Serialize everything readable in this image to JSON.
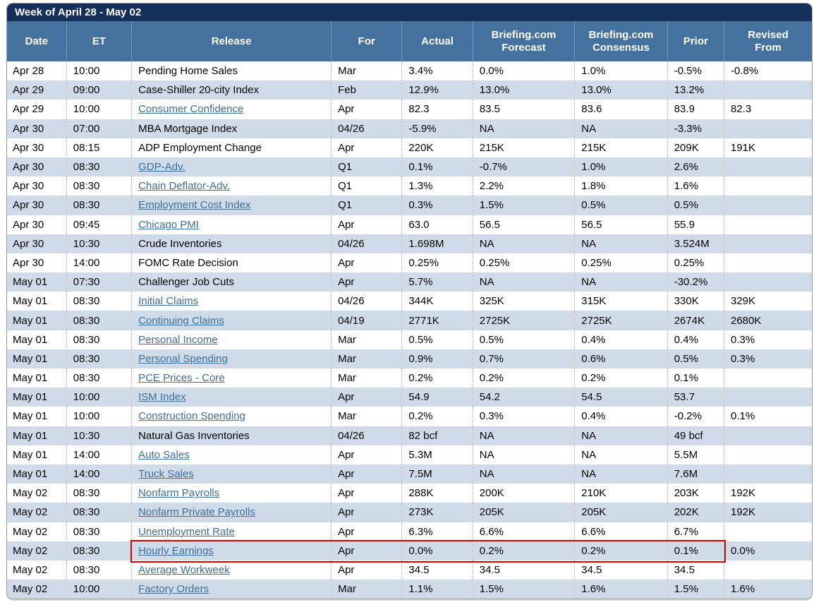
{
  "title": "Week of April 28 - May 02",
  "colors": {
    "title_bar": "#14305a",
    "column_header": "#44719e",
    "row_alt": "#cfdbe8",
    "link": "#3d6f99",
    "highlight_border": "#d40000"
  },
  "columns": [
    "Date",
    "ET",
    "Release",
    "For",
    "Actual",
    "Briefing.com\nForecast",
    "Briefing.com\nConsensus",
    "Prior",
    "Revised\nFrom"
  ],
  "rows": [
    {
      "date": "Apr 28",
      "et": "10:00",
      "release": "Pending Home Sales",
      "link": false,
      "for": "Mar",
      "actual": "3.4%",
      "forecast": "0.0%",
      "consensus": "1.0%",
      "prior": "-0.5%",
      "revised": "-0.8%"
    },
    {
      "date": "Apr 29",
      "et": "09:00",
      "release": "Case-Shiller 20-city Index",
      "link": false,
      "for": "Feb",
      "actual": "12.9%",
      "forecast": "13.0%",
      "consensus": "13.0%",
      "prior": "13.2%",
      "revised": ""
    },
    {
      "date": "Apr 29",
      "et": "10:00",
      "release": "Consumer Confidence",
      "link": true,
      "for": "Apr",
      "actual": "82.3",
      "forecast": "83.5",
      "consensus": "83.6",
      "prior": "83.9",
      "revised": "82.3"
    },
    {
      "date": "Apr 30",
      "et": "07:00",
      "release": "MBA Mortgage Index",
      "link": false,
      "for": "04/26",
      "actual": "-5.9%",
      "forecast": "NA",
      "consensus": "NA",
      "prior": "-3.3%",
      "revised": ""
    },
    {
      "date": "Apr 30",
      "et": "08:15",
      "release": "ADP Employment Change",
      "link": false,
      "for": "Apr",
      "actual": "220K",
      "forecast": "215K",
      "consensus": "215K",
      "prior": "209K",
      "revised": "191K"
    },
    {
      "date": "Apr 30",
      "et": "08:30",
      "release": "GDP-Adv.",
      "link": true,
      "for": "Q1",
      "actual": "0.1%",
      "forecast": "-0.7%",
      "consensus": "1.0%",
      "prior": "2.6%",
      "revised": ""
    },
    {
      "date": "Apr 30",
      "et": "08:30",
      "release": "Chain Deflator-Adv.",
      "link": true,
      "for": "Q1",
      "actual": "1.3%",
      "forecast": "2.2%",
      "consensus": "1.8%",
      "prior": "1.6%",
      "revised": ""
    },
    {
      "date": "Apr 30",
      "et": "08:30",
      "release": "Employment Cost Index",
      "link": true,
      "for": "Q1",
      "actual": "0.3%",
      "forecast": "1.5%",
      "consensus": "0.5%",
      "prior": "0.5%",
      "revised": ""
    },
    {
      "date": "Apr 30",
      "et": "09:45",
      "release": "Chicago PMI",
      "link": true,
      "for": "Apr",
      "actual": "63.0",
      "forecast": "56.5",
      "consensus": "56.5",
      "prior": "55.9",
      "revised": ""
    },
    {
      "date": "Apr 30",
      "et": "10:30",
      "release": "Crude Inventories",
      "link": false,
      "for": "04/26",
      "actual": "1.698M",
      "forecast": "NA",
      "consensus": "NA",
      "prior": "3.524M",
      "revised": ""
    },
    {
      "date": "Apr 30",
      "et": "14:00",
      "release": "FOMC Rate Decision",
      "link": false,
      "for": "Apr",
      "actual": "0.25%",
      "forecast": "0.25%",
      "consensus": "0.25%",
      "prior": "0.25%",
      "revised": ""
    },
    {
      "date": "May 01",
      "et": "07:30",
      "release": "Challenger Job Cuts",
      "link": false,
      "for": "Apr",
      "actual": "5.7%",
      "forecast": "NA",
      "consensus": "NA",
      "prior": "-30.2%",
      "revised": ""
    },
    {
      "date": "May 01",
      "et": "08:30",
      "release": "Initial Claims",
      "link": true,
      "for": "04/26",
      "actual": "344K",
      "forecast": "325K",
      "consensus": "315K",
      "prior": "330K",
      "revised": "329K"
    },
    {
      "date": "May 01",
      "et": "08:30",
      "release": "Continuing Claims",
      "link": true,
      "for": "04/19",
      "actual": "2771K",
      "forecast": "2725K",
      "consensus": "2725K",
      "prior": "2674K",
      "revised": "2680K"
    },
    {
      "date": "May 01",
      "et": "08:30",
      "release": "Personal Income",
      "link": true,
      "for": "Mar",
      "actual": "0.5%",
      "forecast": "0.5%",
      "consensus": "0.4%",
      "prior": "0.4%",
      "revised": "0.3%"
    },
    {
      "date": "May 01",
      "et": "08:30",
      "release": "Personal Spending",
      "link": true,
      "for": "Mar",
      "actual": "0.9%",
      "forecast": "0.7%",
      "consensus": "0.6%",
      "prior": "0.5%",
      "revised": "0.3%"
    },
    {
      "date": "May 01",
      "et": "08:30",
      "release": "PCE Prices - Core",
      "link": true,
      "for": "Mar",
      "actual": "0.2%",
      "forecast": "0.2%",
      "consensus": "0.2%",
      "prior": "0.1%",
      "revised": ""
    },
    {
      "date": "May 01",
      "et": "10:00",
      "release": "ISM Index",
      "link": true,
      "for": "Apr",
      "actual": "54.9",
      "forecast": "54.2",
      "consensus": "54.5",
      "prior": "53.7",
      "revised": ""
    },
    {
      "date": "May 01",
      "et": "10:00",
      "release": "Construction Spending",
      "link": true,
      "for": "Mar",
      "actual": "0.2%",
      "forecast": "0.3%",
      "consensus": "0.4%",
      "prior": "-0.2%",
      "revised": "0.1%"
    },
    {
      "date": "May 01",
      "et": "10:30",
      "release": "Natural Gas Inventories",
      "link": false,
      "for": "04/26",
      "actual": "82 bcf",
      "forecast": "NA",
      "consensus": "NA",
      "prior": "49 bcf",
      "revised": ""
    },
    {
      "date": "May 01",
      "et": "14:00",
      "release": "Auto Sales",
      "link": true,
      "for": "Apr",
      "actual": "5.3M",
      "forecast": "NA",
      "consensus": "NA",
      "prior": "5.5M",
      "revised": ""
    },
    {
      "date": "May 01",
      "et": "14:00",
      "release": "Truck Sales",
      "link": true,
      "for": "Apr",
      "actual": "7.5M",
      "forecast": "NA",
      "consensus": "NA",
      "prior": "7.6M",
      "revised": ""
    },
    {
      "date": "May 02",
      "et": "08:30",
      "release": "Nonfarm Payrolls",
      "link": true,
      "for": "Apr",
      "actual": "288K",
      "forecast": "200K",
      "consensus": "210K",
      "prior": "203K",
      "revised": "192K"
    },
    {
      "date": "May 02",
      "et": "08:30",
      "release": "Nonfarm Private Payrolls",
      "link": true,
      "for": "Apr",
      "actual": "273K",
      "forecast": "205K",
      "consensus": "205K",
      "prior": "202K",
      "revised": "192K"
    },
    {
      "date": "May 02",
      "et": "08:30",
      "release": "Unemployment Rate",
      "link": true,
      "for": "Apr",
      "actual": "6.3%",
      "forecast": "6.6%",
      "consensus": "6.6%",
      "prior": "6.7%",
      "revised": ""
    },
    {
      "date": "May 02",
      "et": "08:30",
      "release": "Hourly Earnings",
      "link": true,
      "highlight": true,
      "for": "Apr",
      "actual": "0.0%",
      "forecast": "0.2%",
      "consensus": "0.2%",
      "prior": "0.1%",
      "revised": "0.0%"
    },
    {
      "date": "May 02",
      "et": "08:30",
      "release": "Average Workweek",
      "link": true,
      "for": "Apr",
      "actual": "34.5",
      "forecast": "34.5",
      "consensus": "34.5",
      "prior": "34.5",
      "revised": ""
    },
    {
      "date": "May 02",
      "et": "10:00",
      "release": "Factory Orders",
      "link": true,
      "for": "Mar",
      "actual": "1.1%",
      "forecast": "1.5%",
      "consensus": "1.6%",
      "prior": "1.5%",
      "revised": "1.6%"
    }
  ]
}
